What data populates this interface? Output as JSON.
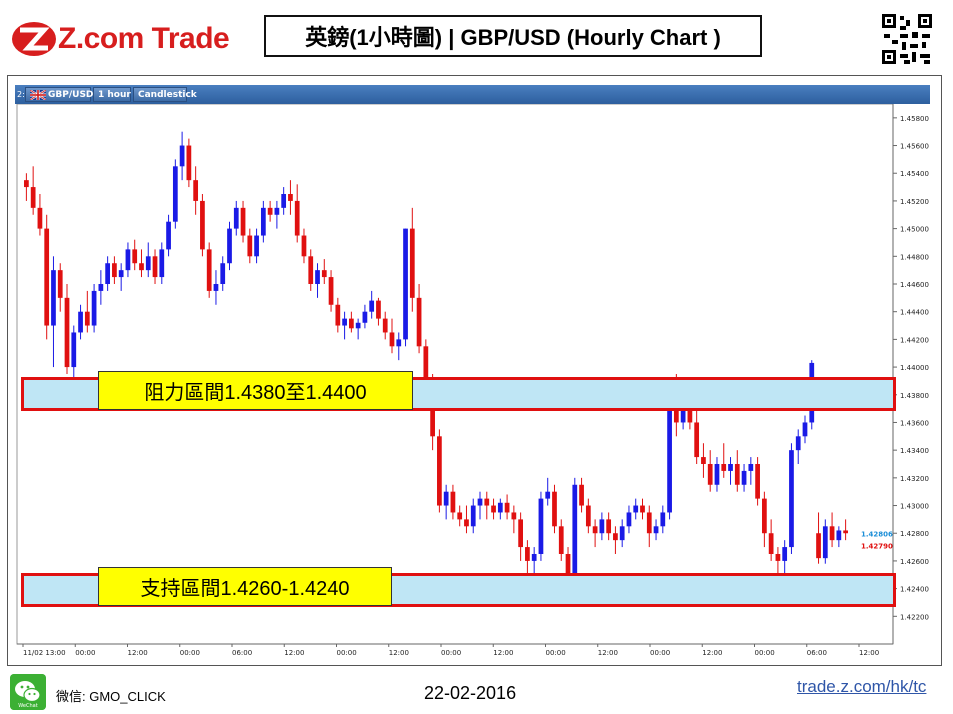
{
  "header": {
    "logo_text": "Z.com Trade",
    "title": "英鎊(1小時圖) | GBP/USD  (Hourly Chart )"
  },
  "toolbar": {
    "window_number": "2:",
    "symbol": "GBP/USD",
    "timeframe": "1 hour",
    "chart_style": "Candlestick"
  },
  "zones": {
    "resistance_label": "阻力區間1.4380至1.4400",
    "support_label": "支持區間1.4260-1.4240"
  },
  "footer": {
    "wechat_label": "微信: GMO_CLICK",
    "date": "22-02-2016",
    "site": "trade.z.com/hk/tc"
  },
  "colors": {
    "up": "#1a1ae6",
    "down": "#e01010",
    "zone_fill": "#bfe6f5",
    "zone_border": "#e01010",
    "label_bg": "#ffff00",
    "brand": "#d71e1e",
    "toolbar": "#3a6cae"
  },
  "chart_data": {
    "type": "candlestick",
    "ylim": [
      1.42,
      1.459
    ],
    "y_ticks": [
      "1.45800",
      "1.45600",
      "1.45400",
      "1.45200",
      "1.45000",
      "1.44800",
      "1.44600",
      "1.44400",
      "1.44200",
      "1.44000",
      "1.43800",
      "1.43600",
      "1.43400",
      "1.43200",
      "1.43000",
      "1.42800",
      "1.42600",
      "1.42400",
      "1.42200"
    ],
    "x_ticks": [
      "11/02 13:00",
      "00:00",
      "12:00",
      "00:00",
      "06:00",
      "12:00",
      "00:00",
      "12:00",
      "00:00",
      "12:00",
      "00:00",
      "12:00",
      "00:00",
      "12:00",
      "00:00",
      "06:00",
      "12:00"
    ],
    "price_labels": {
      "bid": "1.42806",
      "ask": "1.42790"
    },
    "resistance_zone": [
      1.438,
      1.44
    ],
    "support_zone": [
      1.424,
      1.426
    ],
    "candles": [
      [
        1.4535,
        1.454,
        1.452,
        1.453
      ],
      [
        1.453,
        1.4545,
        1.451,
        1.4515
      ],
      [
        1.4515,
        1.4525,
        1.4495,
        1.45
      ],
      [
        1.45,
        1.451,
        1.442,
        1.443
      ],
      [
        1.443,
        1.448,
        1.44,
        1.447
      ],
      [
        1.447,
        1.4475,
        1.444,
        1.445
      ],
      [
        1.445,
        1.446,
        1.4395,
        1.44
      ],
      [
        1.44,
        1.443,
        1.4385,
        1.4425
      ],
      [
        1.4425,
        1.4445,
        1.442,
        1.444
      ],
      [
        1.444,
        1.4455,
        1.4425,
        1.443
      ],
      [
        1.443,
        1.446,
        1.4425,
        1.4455
      ],
      [
        1.4455,
        1.447,
        1.4445,
        1.446
      ],
      [
        1.446,
        1.448,
        1.4455,
        1.4475
      ],
      [
        1.4475,
        1.448,
        1.446,
        1.4465
      ],
      [
        1.4465,
        1.4475,
        1.4455,
        1.447
      ],
      [
        1.447,
        1.449,
        1.4465,
        1.4485
      ],
      [
        1.4485,
        1.4492,
        1.447,
        1.4475
      ],
      [
        1.4475,
        1.4485,
        1.4465,
        1.447
      ],
      [
        1.447,
        1.449,
        1.4465,
        1.448
      ],
      [
        1.448,
        1.4485,
        1.446,
        1.4465
      ],
      [
        1.4465,
        1.449,
        1.446,
        1.4485
      ],
      [
        1.4485,
        1.451,
        1.448,
        1.4505
      ],
      [
        1.4505,
        1.455,
        1.45,
        1.4545
      ],
      [
        1.4545,
        1.457,
        1.4535,
        1.456
      ],
      [
        1.456,
        1.4565,
        1.453,
        1.4535
      ],
      [
        1.4535,
        1.4545,
        1.451,
        1.452
      ],
      [
        1.452,
        1.4525,
        1.448,
        1.4485
      ],
      [
        1.4485,
        1.449,
        1.445,
        1.4455
      ],
      [
        1.4455,
        1.447,
        1.4445,
        1.446
      ],
      [
        1.446,
        1.448,
        1.4455,
        1.4475
      ],
      [
        1.4475,
        1.4505,
        1.447,
        1.45
      ],
      [
        1.45,
        1.452,
        1.4495,
        1.4515
      ],
      [
        1.4515,
        1.452,
        1.449,
        1.4495
      ],
      [
        1.4495,
        1.45,
        1.4475,
        1.448
      ],
      [
        1.448,
        1.45,
        1.4475,
        1.4495
      ],
      [
        1.4495,
        1.452,
        1.449,
        1.4515
      ],
      [
        1.4515,
        1.452,
        1.4505,
        1.451
      ],
      [
        1.451,
        1.452,
        1.45,
        1.4515
      ],
      [
        1.4515,
        1.453,
        1.451,
        1.4525
      ],
      [
        1.4525,
        1.4535,
        1.451,
        1.452
      ],
      [
        1.452,
        1.4532,
        1.449,
        1.4495
      ],
      [
        1.4495,
        1.45,
        1.4475,
        1.448
      ],
      [
        1.448,
        1.4485,
        1.4455,
        1.446
      ],
      [
        1.446,
        1.4475,
        1.445,
        1.447
      ],
      [
        1.447,
        1.4478,
        1.446,
        1.4465
      ],
      [
        1.4465,
        1.447,
        1.444,
        1.4445
      ],
      [
        1.4445,
        1.445,
        1.4425,
        1.443
      ],
      [
        1.443,
        1.444,
        1.442,
        1.4435
      ],
      [
        1.4435,
        1.444,
        1.4425,
        1.4428
      ],
      [
        1.4428,
        1.4435,
        1.442,
        1.4432
      ],
      [
        1.4432,
        1.4445,
        1.4428,
        1.444
      ],
      [
        1.444,
        1.4455,
        1.4435,
        1.4448
      ],
      [
        1.4448,
        1.445,
        1.443,
        1.4435
      ],
      [
        1.4435,
        1.444,
        1.442,
        1.4425
      ],
      [
        1.4425,
        1.4435,
        1.441,
        1.4415
      ],
      [
        1.4415,
        1.4425,
        1.4405,
        1.442
      ],
      [
        1.442,
        1.45,
        1.4415,
        1.45
      ],
      [
        1.45,
        1.4515,
        1.444,
        1.445
      ],
      [
        1.445,
        1.446,
        1.441,
        1.4415
      ],
      [
        1.4415,
        1.442,
        1.438,
        1.439
      ],
      [
        1.439,
        1.4395,
        1.434,
        1.435
      ],
      [
        1.435,
        1.4355,
        1.4295,
        1.43
      ],
      [
        1.43,
        1.4315,
        1.429,
        1.431
      ],
      [
        1.431,
        1.4315,
        1.429,
        1.4295
      ],
      [
        1.4295,
        1.43,
        1.4285,
        1.429
      ],
      [
        1.429,
        1.43,
        1.428,
        1.4285
      ],
      [
        1.4285,
        1.4305,
        1.428,
        1.43
      ],
      [
        1.43,
        1.431,
        1.429,
        1.4305
      ],
      [
        1.4305,
        1.431,
        1.429,
        1.43
      ],
      [
        1.43,
        1.4305,
        1.429,
        1.4295
      ],
      [
        1.4295,
        1.4305,
        1.429,
        1.4302
      ],
      [
        1.4302,
        1.4308,
        1.429,
        1.4295
      ],
      [
        1.4295,
        1.43,
        1.428,
        1.429
      ],
      [
        1.429,
        1.4295,
        1.426,
        1.427
      ],
      [
        1.427,
        1.4275,
        1.425,
        1.426
      ],
      [
        1.426,
        1.427,
        1.425,
        1.4265
      ],
      [
        1.4265,
        1.431,
        1.426,
        1.4305
      ],
      [
        1.4305,
        1.432,
        1.43,
        1.431
      ],
      [
        1.431,
        1.4315,
        1.428,
        1.4285
      ],
      [
        1.4285,
        1.429,
        1.426,
        1.4265
      ],
      [
        1.4265,
        1.427,
        1.424,
        1.425
      ],
      [
        1.425,
        1.432,
        1.4245,
        1.4315
      ],
      [
        1.4315,
        1.432,
        1.4295,
        1.43
      ],
      [
        1.43,
        1.4305,
        1.428,
        1.4285
      ],
      [
        1.4285,
        1.429,
        1.427,
        1.428
      ],
      [
        1.428,
        1.4295,
        1.4275,
        1.429
      ],
      [
        1.429,
        1.4295,
        1.4275,
        1.428
      ],
      [
        1.428,
        1.4285,
        1.4265,
        1.4275
      ],
      [
        1.4275,
        1.429,
        1.427,
        1.4285
      ],
      [
        1.4285,
        1.43,
        1.428,
        1.4295
      ],
      [
        1.4295,
        1.4305,
        1.429,
        1.43
      ],
      [
        1.43,
        1.4305,
        1.429,
        1.4295
      ],
      [
        1.4295,
        1.43,
        1.427,
        1.428
      ],
      [
        1.428,
        1.429,
        1.4275,
        1.4285
      ],
      [
        1.4285,
        1.43,
        1.428,
        1.4295
      ],
      [
        1.4295,
        1.4375,
        1.429,
        1.437
      ],
      [
        1.437,
        1.4395,
        1.435,
        1.436
      ],
      [
        1.436,
        1.438,
        1.4355,
        1.4375
      ],
      [
        1.4375,
        1.4385,
        1.4355,
        1.436
      ],
      [
        1.436,
        1.437,
        1.433,
        1.4335
      ],
      [
        1.4335,
        1.4345,
        1.432,
        1.433
      ],
      [
        1.433,
        1.434,
        1.431,
        1.4315
      ],
      [
        1.4315,
        1.4335,
        1.431,
        1.433
      ],
      [
        1.433,
        1.4345,
        1.432,
        1.4325
      ],
      [
        1.4325,
        1.4335,
        1.4315,
        1.433
      ],
      [
        1.433,
        1.434,
        1.431,
        1.4315
      ],
      [
        1.4315,
        1.433,
        1.431,
        1.4325
      ],
      [
        1.4325,
        1.4335,
        1.4315,
        1.433
      ],
      [
        1.433,
        1.4335,
        1.43,
        1.4305
      ],
      [
        1.4305,
        1.431,
        1.427,
        1.428
      ],
      [
        1.428,
        1.429,
        1.426,
        1.4265
      ],
      [
        1.4265,
        1.427,
        1.4245,
        1.426
      ],
      [
        1.426,
        1.4275,
        1.425,
        1.427
      ],
      [
        1.427,
        1.4345,
        1.4265,
        1.434
      ],
      [
        1.434,
        1.4355,
        1.433,
        1.435
      ],
      [
        1.435,
        1.4365,
        1.4345,
        1.436
      ],
      [
        1.436,
        1.4405,
        1.4355,
        1.4403
      ],
      [
        1.428,
        1.4295,
        1.4258,
        1.4262
      ],
      [
        1.4262,
        1.429,
        1.4258,
        1.4285
      ],
      [
        1.4285,
        1.4295,
        1.427,
        1.4275
      ],
      [
        1.4275,
        1.4285,
        1.427,
        1.4282
      ],
      [
        1.4282,
        1.429,
        1.4275,
        1.428
      ]
    ]
  }
}
